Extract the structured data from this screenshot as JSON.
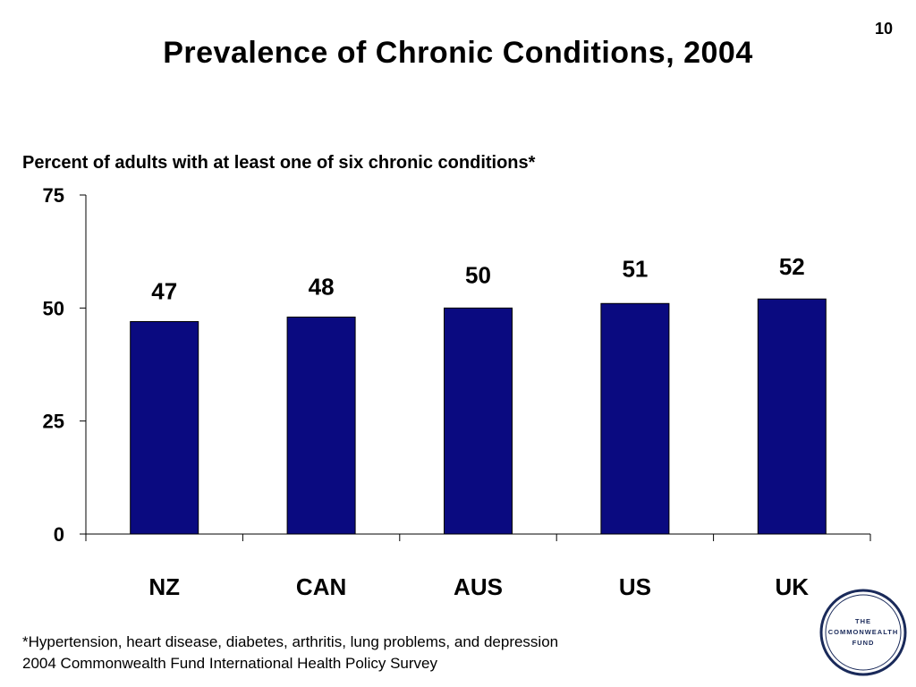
{
  "slide": {
    "number": "10",
    "title": "Prevalence of Chronic Conditions, 2004",
    "subtitle": "Percent of adults with at least one of six chronic conditions*"
  },
  "footnotes": [
    "*Hypertension, heart disease, diabetes, arthritis, lung problems, and depression",
    "2004 Commonwealth Fund International Health Policy Survey"
  ],
  "logo": {
    "lines": [
      "THE",
      "COMMONWEALTH",
      "FUND"
    ]
  },
  "colors": {
    "bar_fill": "#0a0a80",
    "logo_ring": "#1a2a5a"
  },
  "chart_data": {
    "type": "bar",
    "categories": [
      "NZ",
      "CAN",
      "AUS",
      "US",
      "UK"
    ],
    "values": [
      47,
      48,
      50,
      51,
      52
    ],
    "data_labels": [
      "47",
      "48",
      "50",
      "51",
      "52"
    ],
    "ylim": [
      0,
      75
    ],
    "yticks": [
      0,
      25,
      50,
      75
    ],
    "grid": false,
    "legend": "none"
  }
}
